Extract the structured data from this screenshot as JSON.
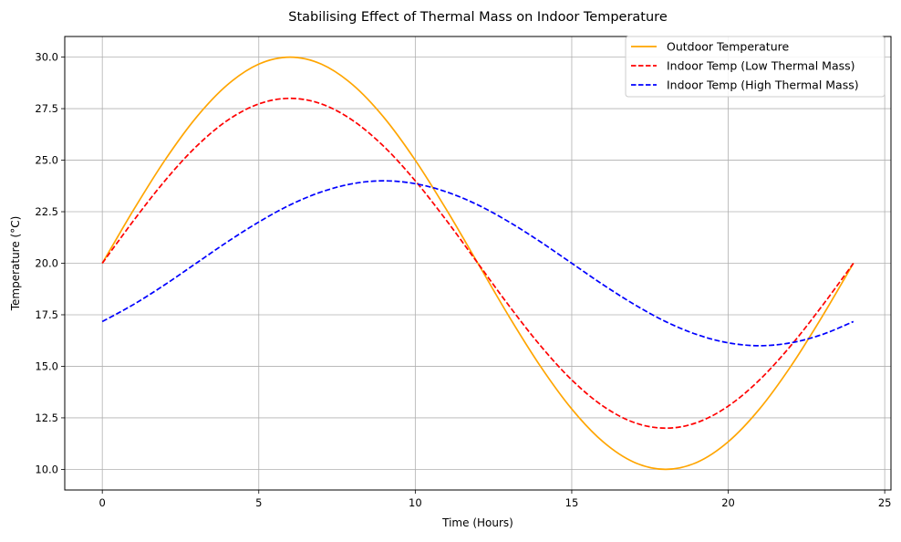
{
  "chart_data": {
    "type": "line",
    "title": "Stabilising Effect of Thermal Mass on Indoor Temperature",
    "xlabel": "Time (Hours)",
    "ylabel": "Temperature (°C)",
    "xlim": [
      -1.2,
      25.2
    ],
    "ylim": [
      9.0,
      31.0
    ],
    "xticks": [
      0,
      5,
      10,
      15,
      20,
      25
    ],
    "xtick_labels": [
      "0",
      "5",
      "10",
      "15",
      "20",
      "25"
    ],
    "yticks": [
      10.0,
      12.5,
      15.0,
      17.5,
      20.0,
      22.5,
      25.0,
      27.5,
      30.0
    ],
    "ytick_labels": [
      "10.0",
      "12.5",
      "15.0",
      "17.5",
      "20.0",
      "22.5",
      "25.0",
      "27.5",
      "30.0"
    ],
    "grid": true,
    "legend_position": "top-right",
    "x": [
      0,
      1,
      2,
      3,
      4,
      5,
      6,
      7,
      8,
      9,
      10,
      11,
      12,
      13,
      14,
      15,
      16,
      17,
      18,
      19,
      20,
      21,
      22,
      23,
      24
    ],
    "series": [
      {
        "name": "Outdoor Temperature",
        "color": "#ffa500",
        "style": "solid",
        "values": [
          20.0,
          22.59,
          25.0,
          27.07,
          28.66,
          29.66,
          30.0,
          29.66,
          28.66,
          27.07,
          25.0,
          22.59,
          20.0,
          17.41,
          15.0,
          12.93,
          11.34,
          10.34,
          10.0,
          10.34,
          11.34,
          12.93,
          15.0,
          17.41,
          20.0
        ]
      },
      {
        "name": "Indoor Temp (Low Thermal Mass)",
        "color": "#ff0000",
        "style": "dashed",
        "values": [
          20.0,
          22.07,
          24.0,
          25.66,
          26.93,
          27.73,
          28.0,
          27.73,
          26.93,
          25.66,
          24.0,
          22.07,
          20.0,
          17.93,
          16.0,
          14.34,
          13.07,
          12.27,
          12.0,
          12.27,
          13.07,
          14.34,
          16.0,
          17.93,
          20.0
        ]
      },
      {
        "name": "Indoor Temp (High Thermal Mass)",
        "color": "#0000ff",
        "style": "dashed",
        "values": [
          17.17,
          18.0,
          18.96,
          20.0,
          21.04,
          22.0,
          22.83,
          23.46,
          23.86,
          24.0,
          23.86,
          23.46,
          22.83,
          22.0,
          21.04,
          20.0,
          18.96,
          18.0,
          17.17,
          16.54,
          16.14,
          16.0,
          16.14,
          16.54,
          17.17
        ]
      }
    ]
  }
}
